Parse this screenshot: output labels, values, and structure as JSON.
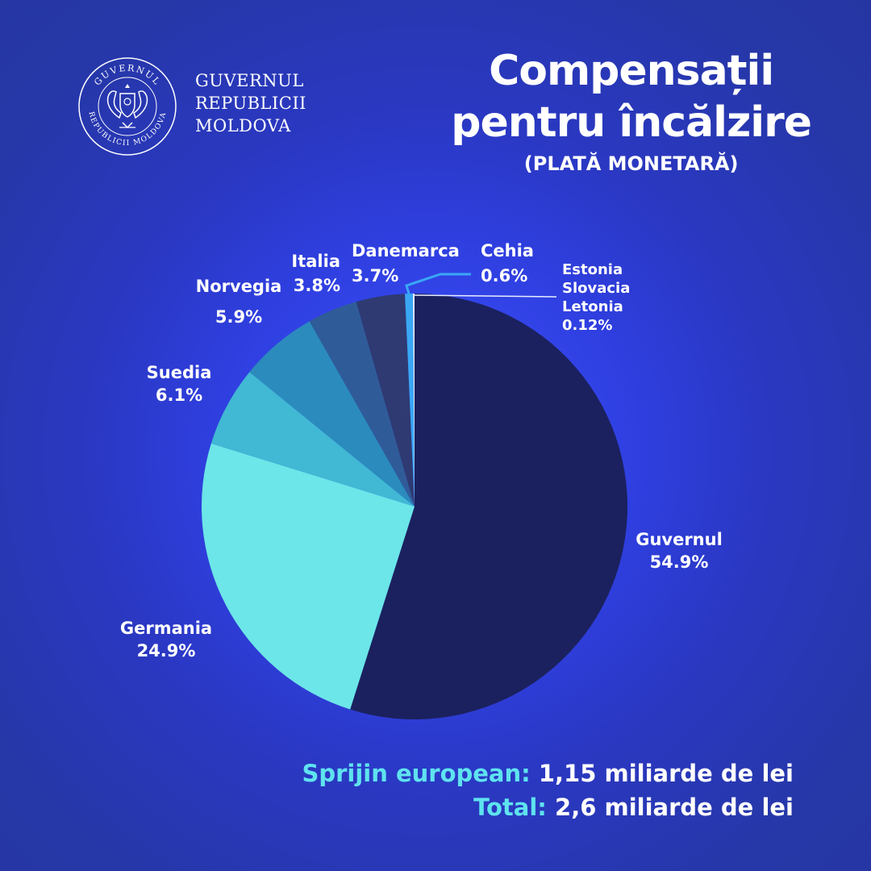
{
  "header": {
    "org_lines": [
      "GUVERNUL",
      "REPUBLICII",
      "MOLDOVA"
    ],
    "seal_top": "GUVERNUL",
    "seal_bottom": "REPUBLICII MOLDOVA",
    "title_line1": "Compensații",
    "title_line2": "pentru încălzire",
    "subtitle": "(PLATĂ MONETARĂ)"
  },
  "chart_data": {
    "type": "pie",
    "slices": [
      {
        "label": "Guvernul",
        "value_label": "54.9%",
        "value": 54.9,
        "color": "#1b215e"
      },
      {
        "label": "Germania",
        "value_label": "24.9%",
        "value": 24.9,
        "color": "#6ce6e8"
      },
      {
        "label": "Suedia",
        "value_label": "6.1%",
        "value": 6.1,
        "color": "#41b8d4"
      },
      {
        "label": "Norvegia",
        "value_label": "5.9%",
        "value": 5.9,
        "color": "#2b8bbd"
      },
      {
        "label": "Italia",
        "value_label": "3.8%",
        "value": 3.8,
        "color": "#2f5c98"
      },
      {
        "label": "Danemarca",
        "value_label": "3.7%",
        "value": 3.7,
        "color": "#2f3a72"
      },
      {
        "label": "Cehia",
        "value_label": "0.6%",
        "value": 0.6,
        "color": "#3aa7f5"
      },
      {
        "label": "Estonia\nSlovacia\nLetonia",
        "value_label": "0.12%",
        "value": 0.12,
        "color": "#e8eefc"
      }
    ]
  },
  "footer": {
    "line1_key": "Sprijin european:",
    "line1_value": "1,15 miliarde de lei",
    "line2_key": "Total:",
    "line2_value": "2,6 miliarde de lei"
  },
  "colors": {
    "accent": "#5fe3ef",
    "background": "#2a38c2"
  }
}
